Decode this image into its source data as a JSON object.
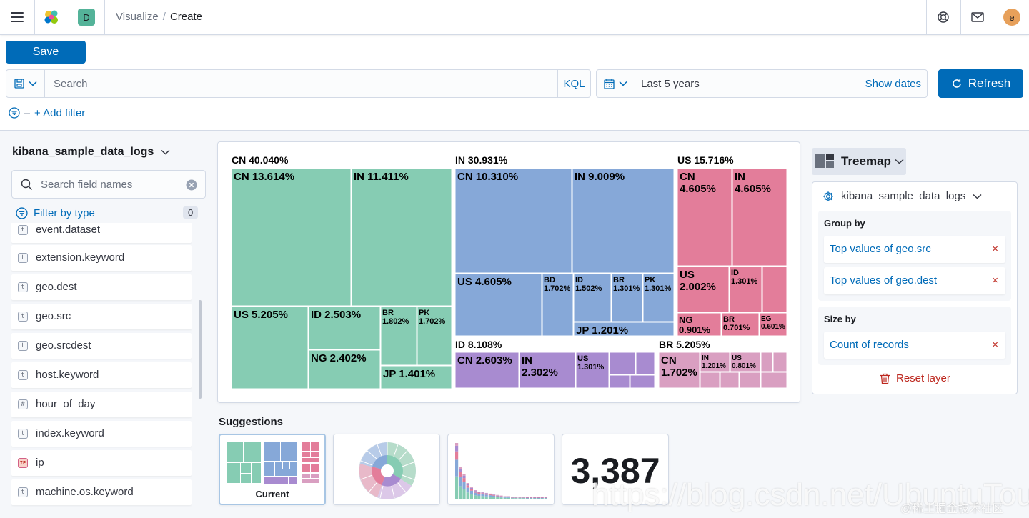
{
  "header": {
    "space_initial": "D",
    "breadcrumbs": [
      "Visualize",
      "Create"
    ],
    "user_initial": "e"
  },
  "toolbar": {
    "save_label": "Save",
    "search_placeholder": "Search",
    "kql_label": "KQL",
    "date_range": "Last 5 years",
    "show_dates_label": "Show dates",
    "refresh_label": "Refresh",
    "add_filter_label": "+ Add filter"
  },
  "sidebar": {
    "index_pattern": "kibana_sample_data_logs",
    "field_search_placeholder": "Search field names",
    "filter_by_type_label": "Filter by type",
    "filter_count": "0",
    "fields": [
      {
        "name": "event.dataset",
        "type": "t"
      },
      {
        "name": "extension.keyword",
        "type": "t"
      },
      {
        "name": "geo.dest",
        "type": "t"
      },
      {
        "name": "geo.src",
        "type": "t"
      },
      {
        "name": "geo.srcdest",
        "type": "t"
      },
      {
        "name": "host.keyword",
        "type": "t"
      },
      {
        "name": "hour_of_day",
        "type": "#"
      },
      {
        "name": "index.keyword",
        "type": "t"
      },
      {
        "name": "ip",
        "type": "IP"
      },
      {
        "name": "machine.os.keyword",
        "type": "t"
      }
    ]
  },
  "chart_data": {
    "type": "treemap",
    "colors": {
      "CN": "#86ccb3",
      "IN": "#86a8d8",
      "US": "#e37d9a",
      "ID": "#a88bd0",
      "BR": "#d99fc1"
    },
    "groups": [
      {
        "label": "CN 40.040%",
        "key": "CN",
        "percent": 40.04,
        "children": [
          {
            "label": "CN 13.614%",
            "percent": 13.614
          },
          {
            "label": "IN 11.411%",
            "percent": 11.411
          },
          {
            "label": "US 5.205%",
            "percent": 5.205
          },
          {
            "label": "ID 2.503%",
            "percent": 2.503
          },
          {
            "label": "NG 2.402%",
            "percent": 2.402
          },
          {
            "label": "BR 1.802%",
            "percent": 1.802
          },
          {
            "label": "PK 1.702%",
            "percent": 1.702
          },
          {
            "label": "JP 1.401%",
            "percent": 1.401
          }
        ]
      },
      {
        "label": "IN 30.931%",
        "key": "IN",
        "percent": 30.931,
        "children": [
          {
            "label": "CN 10.310%",
            "percent": 10.31
          },
          {
            "label": "IN 9.009%",
            "percent": 9.009
          },
          {
            "label": "US 4.605%",
            "percent": 4.605
          },
          {
            "label": "BD 1.702%",
            "percent": 1.702
          },
          {
            "label": "ID 1.502%",
            "percent": 1.502
          },
          {
            "label": "BR 1.301%",
            "percent": 1.301
          },
          {
            "label": "PK 1.301%",
            "percent": 1.301
          },
          {
            "label": "JP 1.201%",
            "percent": 1.201
          }
        ]
      },
      {
        "label": "US 15.716%",
        "key": "US",
        "percent": 15.716,
        "children": [
          {
            "label": "CN 4.605%",
            "percent": 4.605
          },
          {
            "label": "IN 4.605%",
            "percent": 4.605
          },
          {
            "label": "US 2.002%",
            "percent": 2.002
          },
          {
            "label": "ID 1.301%",
            "percent": 1.301
          },
          {
            "label": "NG 0.901%",
            "percent": 0.901
          },
          {
            "label": "BR 0.701%",
            "percent": 0.701
          },
          {
            "label": "EG 0.601%",
            "percent": 0.601
          }
        ]
      },
      {
        "label": "ID 8.108%",
        "key": "ID",
        "percent": 8.108,
        "children": [
          {
            "label": "CN 2.603%",
            "percent": 2.603
          },
          {
            "label": "IN 2.302%",
            "percent": 2.302
          },
          {
            "label": "US 1.301%",
            "percent": 1.301
          }
        ]
      },
      {
        "label": "BR 5.205%",
        "key": "BR",
        "percent": 5.205,
        "children": [
          {
            "label": "CN 1.702%",
            "percent": 1.702
          },
          {
            "label": "IN 1.201%",
            "percent": 1.201
          },
          {
            "label": "US 0.801%",
            "percent": 0.801
          }
        ]
      }
    ]
  },
  "suggestions": {
    "title": "Suggestions",
    "current_label": "Current",
    "metric_value": "3,387"
  },
  "config": {
    "vis_type": "Treemap",
    "index_pattern": "kibana_sample_data_logs",
    "group_by_label": "Group by",
    "group_by": [
      "Top values of geo.src",
      "Top values of geo.dest"
    ],
    "size_by_label": "Size by",
    "size_by": "Count of records",
    "reset_label": "Reset layer",
    "remove_glyph": "×"
  },
  "watermark": {
    "url": "https://blog.csdn.net/UbuntuTouch",
    "site": "@稀土掘金技术社区"
  }
}
